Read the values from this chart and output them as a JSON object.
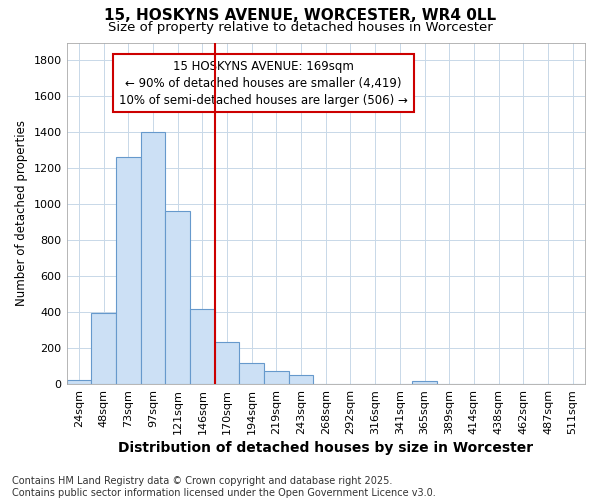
{
  "title": "15, HOSKYNS AVENUE, WORCESTER, WR4 0LL",
  "subtitle": "Size of property relative to detached houses in Worcester",
  "xlabel": "Distribution of detached houses by size in Worcester",
  "ylabel": "Number of detached properties",
  "footnote": "Contains HM Land Registry data © Crown copyright and database right 2025.\nContains public sector information licensed under the Open Government Licence v3.0.",
  "categories": [
    "24sqm",
    "48sqm",
    "73sqm",
    "97sqm",
    "121sqm",
    "146sqm",
    "170sqm",
    "194sqm",
    "219sqm",
    "243sqm",
    "268sqm",
    "292sqm",
    "316sqm",
    "341sqm",
    "365sqm",
    "389sqm",
    "414sqm",
    "438sqm",
    "462sqm",
    "487sqm",
    "511sqm"
  ],
  "values": [
    25,
    395,
    1265,
    1400,
    960,
    420,
    235,
    115,
    70,
    50,
    0,
    0,
    0,
    0,
    15,
    0,
    0,
    0,
    0,
    0,
    0
  ],
  "bar_color": "#cce0f5",
  "bar_edge_color": "#6699cc",
  "red_line_index": 6,
  "red_line_color": "#cc0000",
  "annotation_box_text": "15 HOSKYNS AVENUE: 169sqm\n← 90% of detached houses are smaller (4,419)\n10% of semi-detached houses are larger (506) →",
  "ylim": [
    0,
    1900
  ],
  "yticks": [
    0,
    200,
    400,
    600,
    800,
    1000,
    1200,
    1400,
    1600,
    1800
  ],
  "background_color": "#ffffff",
  "grid_color": "#c8d8e8",
  "title_fontsize": 11,
  "subtitle_fontsize": 9.5,
  "xlabel_fontsize": 10,
  "ylabel_fontsize": 8.5,
  "tick_fontsize": 8,
  "annotation_fontsize": 8.5,
  "footnote_fontsize": 7
}
